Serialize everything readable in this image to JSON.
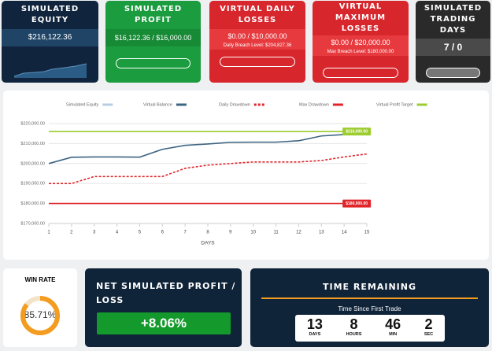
{
  "cards": [
    {
      "title": "SIMULATED EQUITY",
      "value": "$216,122.36"
    },
    {
      "title": "SIMULATED PROFIT",
      "value": "$16,122.36 / $16,000.00"
    },
    {
      "title": "VIRTUAL DAILY LOSSES",
      "value": "$0.00 / $10,000.00",
      "note": "Daily Breach Level: $204,827.36"
    },
    {
      "title": "VIRTUAL MAXIMUM LOSSES",
      "value": "$0.00 / $20,000.00",
      "note": "Max Breach Level: $180,000.00"
    },
    {
      "title": "SIMULATED TRADING DAYS",
      "value": "7 / 0"
    }
  ],
  "chart_data": {
    "type": "line",
    "x_label": "DAYS",
    "x": [
      1,
      2,
      3,
      4,
      5,
      6,
      7,
      8,
      9,
      10,
      11,
      12,
      13,
      14,
      15
    ],
    "xlim": [
      1,
      15
    ],
    "xticks": [
      1,
      2,
      3,
      4,
      5,
      6,
      7,
      8,
      9,
      10,
      11,
      12,
      13,
      14,
      15
    ],
    "ylim": [
      170000,
      220000
    ],
    "yticks": [
      {
        "value": 170000,
        "label": "$170,000.00"
      },
      {
        "value": 180000,
        "label": "$180,000.00"
      },
      {
        "value": 190000,
        "label": "$190,000.00"
      },
      {
        "value": 200000,
        "label": "$200,000.00"
      },
      {
        "value": 210000,
        "label": "$210,000.00"
      },
      {
        "value": 220000,
        "label": "$220,000.00"
      }
    ],
    "grid": true,
    "series": [
      {
        "name": "Simulated Equity",
        "color": "#b8cde0",
        "values": [
          null,
          null,
          null,
          null,
          null,
          null,
          null,
          null,
          null,
          null,
          null,
          null,
          null,
          null,
          null
        ]
      },
      {
        "name": "Virtual Balance",
        "color": "#3d6482",
        "values": [
          200000,
          203150,
          203300,
          203300,
          203200,
          207100,
          209100,
          209800,
          210600,
          210700,
          210700,
          211400,
          213800,
          214500,
          null
        ]
      },
      {
        "name": "Daily Drawdown",
        "color": "#e0262b",
        "dash": true,
        "values": [
          190000,
          190000,
          193500,
          193500,
          193500,
          193500,
          197600,
          199200,
          200000,
          200800,
          200800,
          200800,
          201500,
          203300,
          204800
        ]
      },
      {
        "name": "Max Drawdown",
        "color": "#e0262b",
        "values": [
          180000,
          180000,
          180000,
          180000,
          180000,
          180000,
          180000,
          180000,
          180000,
          180000,
          180000,
          180000,
          180000,
          180000,
          180000
        ],
        "value_labels": [
          null,
          null,
          null,
          null,
          null,
          null,
          null,
          null,
          null,
          null,
          null,
          null,
          null,
          "$180,000.00",
          null
        ]
      },
      {
        "name": "Virtual Profit Target",
        "color": "#9ccc2e",
        "values": [
          216000,
          216000,
          216000,
          216000,
          216000,
          216000,
          216000,
          216000,
          216000,
          216000,
          216000,
          216000,
          216000,
          216000,
          216000
        ],
        "value_labels": [
          null,
          null,
          null,
          null,
          null,
          null,
          null,
          null,
          null,
          null,
          null,
          null,
          null,
          "$216,000.00",
          null
        ]
      }
    ]
  },
  "win_rate": {
    "title": "WIN RATE",
    "value": 85.71,
    "label": "85.71%"
  },
  "net_profit": {
    "title": "NET SIMULATED PROFIT / LOSS",
    "value": "+8.06%"
  },
  "time_remaining": {
    "title": "TIME REMAINING",
    "subtitle": "Time Since First Trade",
    "units": [
      {
        "value": 13,
        "unit": "DAYS"
      },
      {
        "value": 8,
        "unit": "HOURS"
      },
      {
        "value": 46,
        "unit": "MIN"
      },
      {
        "value": 2,
        "unit": "SEC"
      }
    ]
  }
}
